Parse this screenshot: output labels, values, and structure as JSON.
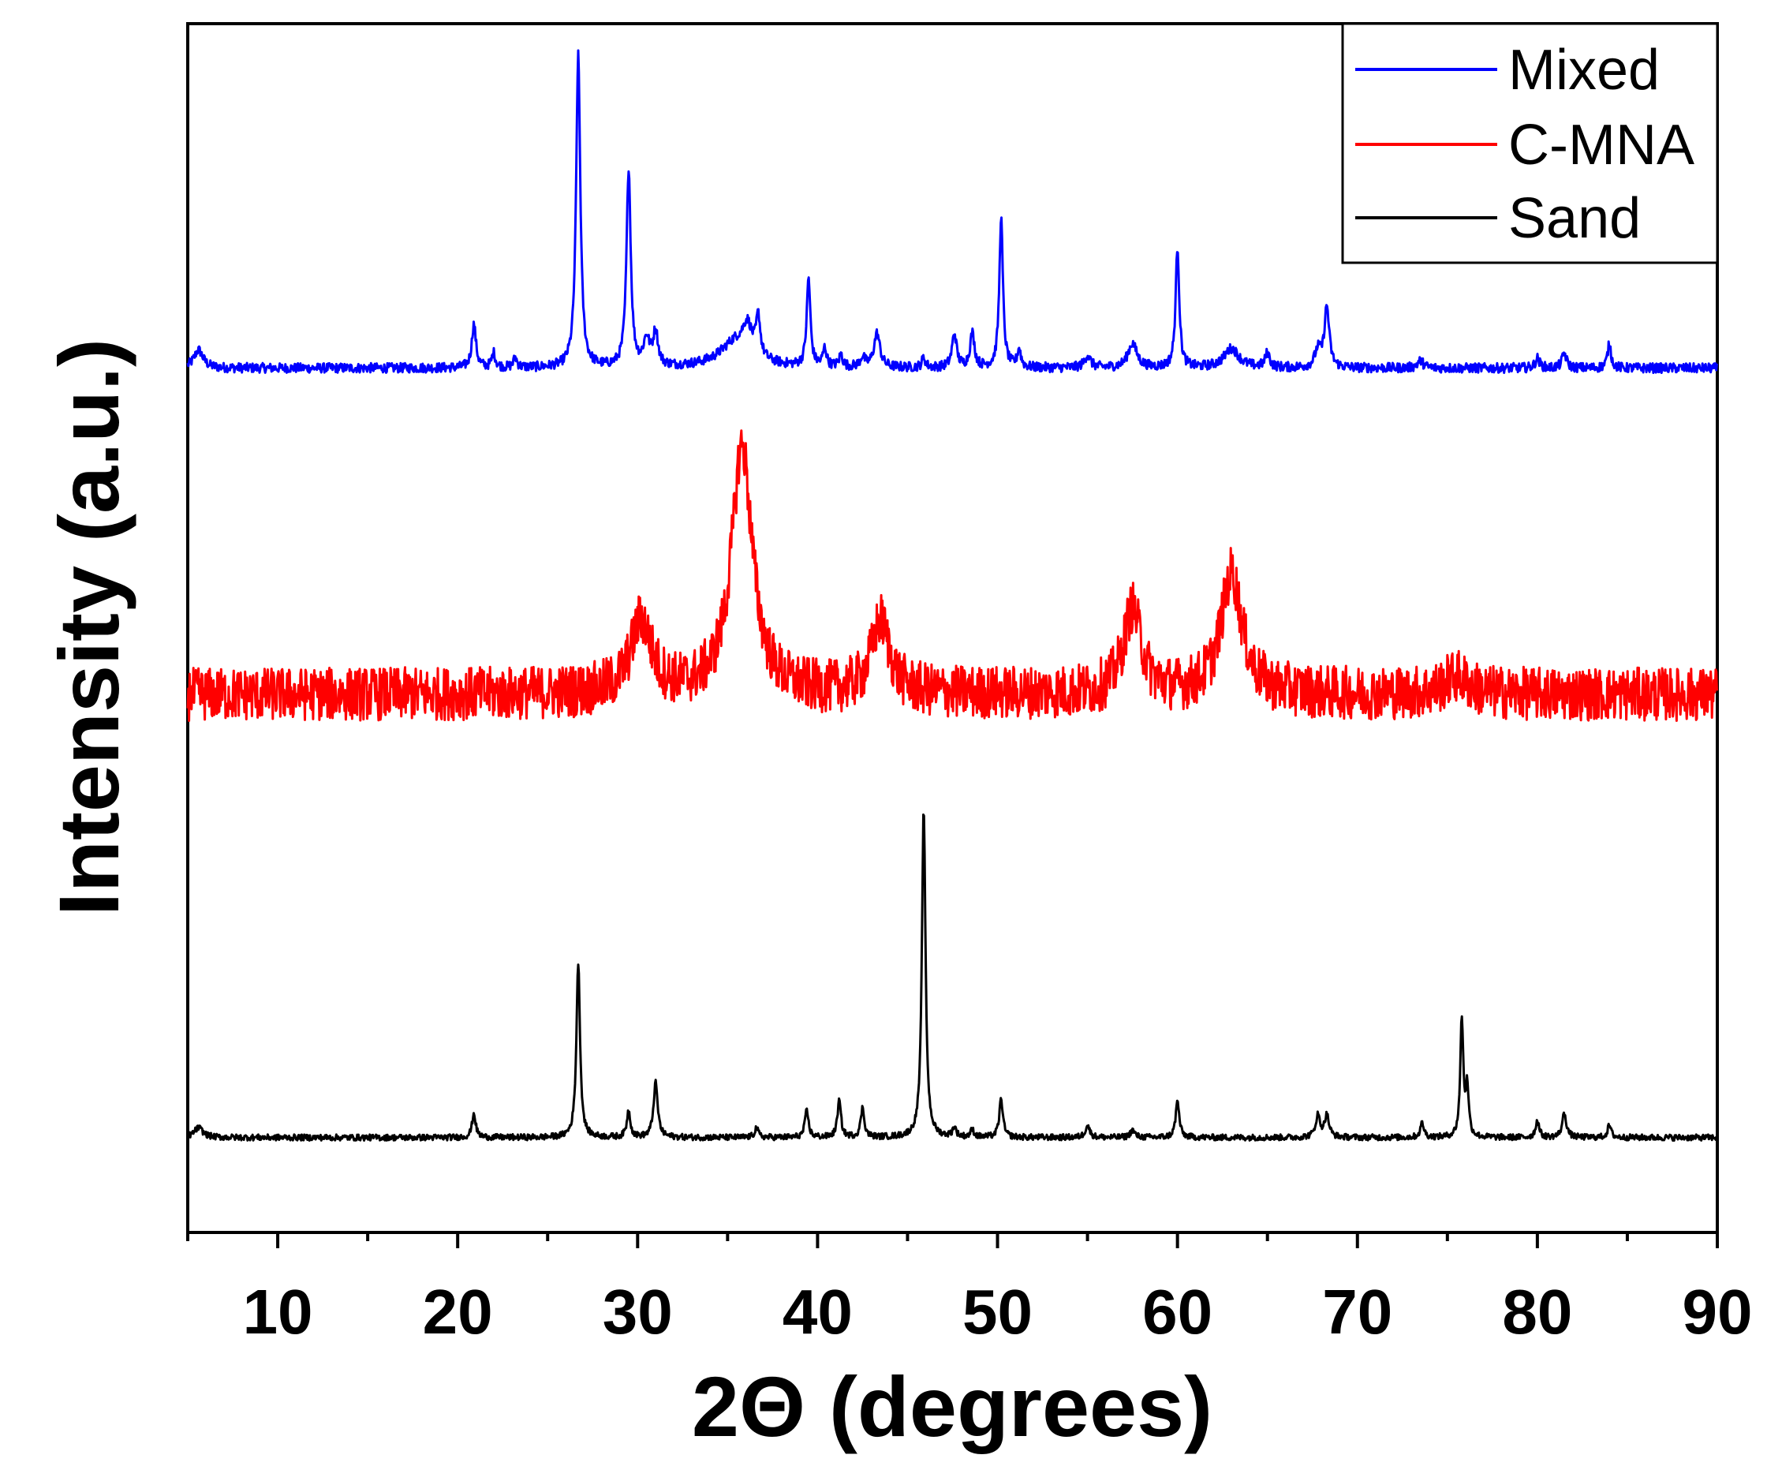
{
  "chart_data": {
    "type": "line",
    "title": "",
    "xlabel": "2Θ (degrees)",
    "ylabel": "Intensity (a.u.)",
    "xlim": [
      5,
      90
    ],
    "xticks": [
      10,
      20,
      30,
      40,
      50,
      60,
      70,
      80,
      90
    ],
    "y_ticks_shown": false,
    "grid": false,
    "legend_position": "top-right",
    "series": [
      {
        "name": "Mixed",
        "color": "#0000ff",
        "baseline": 0.715,
        "noise": 0.004,
        "peaks": [
          [
            5.6,
            0.015,
            0.3
          ],
          [
            20.9,
            0.036,
            0.14
          ],
          [
            22.0,
            0.012,
            0.12
          ],
          [
            23.2,
            0.008,
            0.12
          ],
          [
            26.7,
            0.258,
            0.14
          ],
          [
            29.5,
            0.164,
            0.14
          ],
          [
            30.5,
            0.022,
            0.2
          ],
          [
            31.0,
            0.028,
            0.16
          ],
          [
            35.5,
            0.022,
            1.1
          ],
          [
            36.1,
            0.022,
            0.3
          ],
          [
            36.7,
            0.032,
            0.14
          ],
          [
            39.5,
            0.073,
            0.12
          ],
          [
            40.4,
            0.015,
            0.12
          ],
          [
            41.3,
            0.01,
            0.12
          ],
          [
            42.5,
            0.008,
            0.15
          ],
          [
            43.3,
            0.028,
            0.2
          ],
          [
            45.9,
            0.008,
            0.12
          ],
          [
            47.6,
            0.028,
            0.15
          ],
          [
            48.6,
            0.028,
            0.15
          ],
          [
            50.2,
            0.125,
            0.12
          ],
          [
            51.2,
            0.015,
            0.12
          ],
          [
            55.0,
            0.01,
            0.2
          ],
          [
            57.5,
            0.02,
            0.3
          ],
          [
            60.0,
            0.1,
            0.12
          ],
          [
            63.0,
            0.016,
            0.5
          ],
          [
            65.0,
            0.012,
            0.15
          ],
          [
            67.8,
            0.014,
            0.2
          ],
          [
            68.3,
            0.05,
            0.16
          ],
          [
            73.5,
            0.006,
            0.2
          ],
          [
            80.0,
            0.008,
            0.15
          ],
          [
            81.5,
            0.012,
            0.15
          ],
          [
            84.0,
            0.02,
            0.12
          ]
        ]
      },
      {
        "name": "C-MNA",
        "color": "#ff0000",
        "baseline": 0.445,
        "noise": 0.022,
        "peaks": [
          [
            30.2,
            0.06,
            0.7
          ],
          [
            35.8,
            0.205,
            0.7
          ],
          [
            43.5,
            0.06,
            0.6
          ],
          [
            57.5,
            0.07,
            0.6
          ],
          [
            63.0,
            0.1,
            0.7
          ],
          [
            75.5,
            0.015,
            0.8
          ]
        ]
      },
      {
        "name": "Sand",
        "color": "#000000",
        "baseline": 0.0785,
        "noise": 0.0025,
        "peaks": [
          [
            5.6,
            0.008,
            0.3
          ],
          [
            20.9,
            0.02,
            0.12
          ],
          [
            26.7,
            0.145,
            0.12
          ],
          [
            29.5,
            0.022,
            0.12
          ],
          [
            31.0,
            0.045,
            0.14
          ],
          [
            36.6,
            0.008,
            0.12
          ],
          [
            39.4,
            0.022,
            0.12
          ],
          [
            41.2,
            0.03,
            0.12
          ],
          [
            42.5,
            0.024,
            0.12
          ],
          [
            45.9,
            0.272,
            0.12
          ],
          [
            47.6,
            0.008,
            0.12
          ],
          [
            48.6,
            0.006,
            0.12
          ],
          [
            50.2,
            0.032,
            0.12
          ],
          [
            55.0,
            0.01,
            0.15
          ],
          [
            57.5,
            0.006,
            0.15
          ],
          [
            60.0,
            0.03,
            0.12
          ],
          [
            67.8,
            0.018,
            0.15
          ],
          [
            68.3,
            0.018,
            0.15
          ],
          [
            73.6,
            0.012,
            0.12
          ],
          [
            75.8,
            0.098,
            0.1
          ],
          [
            76.1,
            0.04,
            0.1
          ],
          [
            80.0,
            0.014,
            0.12
          ],
          [
            81.5,
            0.02,
            0.14
          ],
          [
            84.0,
            0.01,
            0.12
          ]
        ]
      }
    ],
    "legend": [
      "Mixed",
      "C-MNA",
      "Sand"
    ]
  }
}
